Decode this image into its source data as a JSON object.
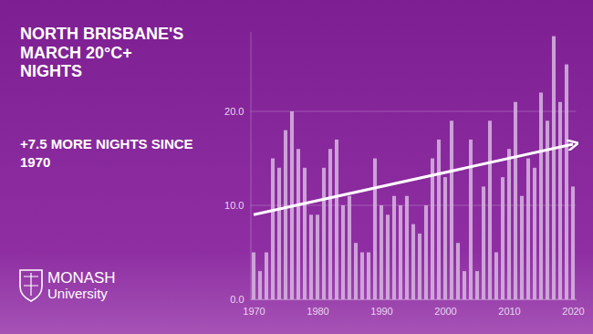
{
  "chart_data": {
    "type": "bar",
    "title": "NORTH BRISBANE'S MARCH 20°C+ NIGHTS",
    "subtitle": "+7.5 MORE NIGHTS SINCE 1970",
    "x": [
      1970,
      1971,
      1972,
      1973,
      1974,
      1975,
      1976,
      1977,
      1978,
      1979,
      1980,
      1981,
      1982,
      1983,
      1984,
      1985,
      1986,
      1987,
      1988,
      1989,
      1990,
      1991,
      1992,
      1993,
      1994,
      1995,
      1996,
      1997,
      1998,
      1999,
      2000,
      2001,
      2002,
      2003,
      2004,
      2005,
      2006,
      2007,
      2008,
      2009,
      2010,
      2011,
      2012,
      2013,
      2014,
      2015,
      2016,
      2017,
      2018,
      2019,
      2020
    ],
    "values": [
      5,
      3,
      5,
      15,
      14,
      18,
      20,
      16,
      14,
      9,
      9,
      14,
      16,
      17,
      10,
      11,
      6,
      5,
      5,
      15,
      10,
      9,
      11,
      10,
      11,
      8,
      7,
      10,
      15,
      17,
      13,
      19,
      6,
      3,
      17,
      3,
      12,
      19,
      5,
      13,
      16,
      21,
      11,
      15,
      14,
      22,
      19,
      28,
      21,
      25,
      12
    ],
    "color": "#d8b6e2",
    "xlim": [
      1969.5,
      2020.5
    ],
    "xticks": [
      1970,
      1980,
      1990,
      2000,
      2010,
      2020
    ],
    "ylim": [
      0,
      28.5
    ],
    "yticks": [
      {
        "value": 0,
        "label": "0.0"
      },
      {
        "value": 10,
        "label": "10.0"
      },
      {
        "value": 20,
        "label": "20.0"
      }
    ],
    "grid": true,
    "trend_line": {
      "x": [
        1970,
        2020
      ],
      "values": [
        9,
        16.5
      ]
    }
  },
  "logo": {
    "name": "MONASH",
    "subname": "University"
  }
}
